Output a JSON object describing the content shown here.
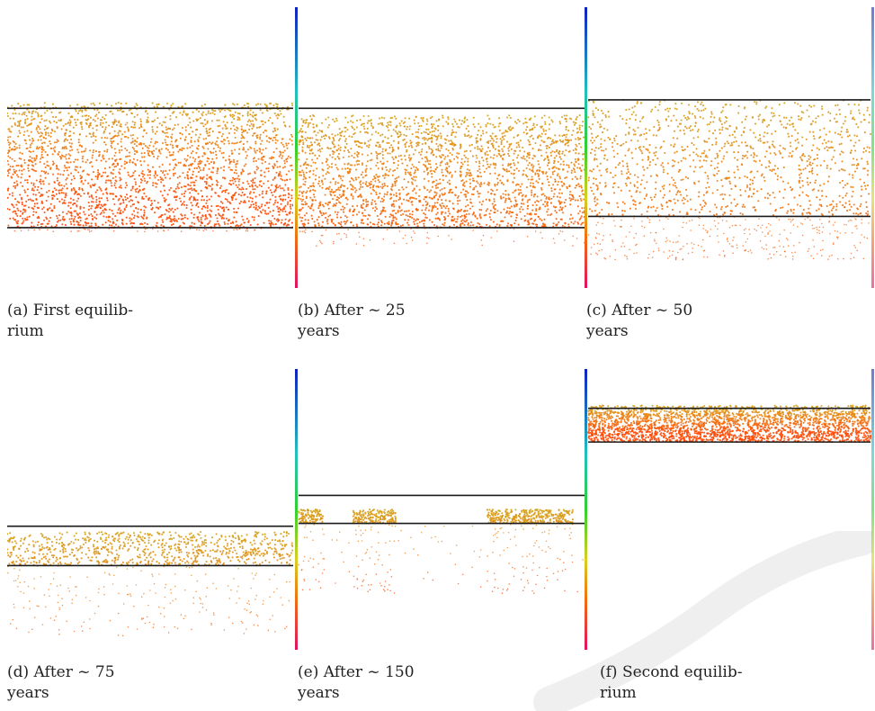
{
  "figure": {
    "panels": [
      {
        "id": "a",
        "caption_line1": "(a)  First  equilib-",
        "caption_line2": "rium",
        "upper_line_level": 0.64,
        "lower_line_level": 0.215,
        "band_top": 0.66,
        "band_bottom": 0.2,
        "density": 1.0,
        "warm_shift": 0.75,
        "colorbar": "none",
        "clusters": []
      },
      {
        "id": "b",
        "caption_line1": "(b)   After   ~   25",
        "caption_line2": "years",
        "upper_line_level": 0.64,
        "lower_line_level": 0.215,
        "band_top": 0.615,
        "band_bottom": 0.15,
        "density": 0.95,
        "warm_shift": 0.35,
        "colorbar": "left",
        "clusters": []
      },
      {
        "id": "c",
        "caption_line1": "(c)   After   ~   50",
        "caption_line2": "years",
        "upper_line_level": 0.67,
        "lower_line_level": 0.255,
        "band_top": 0.67,
        "band_bottom": 0.1,
        "density": 0.55,
        "warm_shift": 0.25,
        "colorbar": "both",
        "clusters": []
      },
      {
        "id": "d",
        "caption_line1": "(d)   After   ~   75",
        "caption_line2": "years",
        "upper_line_level": 0.44,
        "lower_line_level": 0.3,
        "band_top": 0.42,
        "band_bottom": 0.05,
        "density": 0.4,
        "warm_shift": 0.2,
        "colorbar": "none",
        "clusters": []
      },
      {
        "id": "e",
        "caption_line1": "(e)  After  ~  150",
        "caption_line2": "years",
        "upper_line_level": 0.55,
        "lower_line_level": 0.45,
        "band_top": 0.5,
        "band_bottom": 0.2,
        "density": 0.6,
        "warm_shift": 0.45,
        "colorbar": "left",
        "clusters": [
          [
            0.0,
            0.09
          ],
          [
            0.19,
            0.34
          ],
          [
            0.66,
            0.96
          ]
        ]
      },
      {
        "id": "f",
        "caption_line1": "(f) Second equilib-",
        "caption_line2": "rium",
        "upper_line_level": 0.86,
        "lower_line_level": 0.74,
        "band_top": 0.87,
        "band_bottom": 0.74,
        "density": 1.0,
        "warm_shift": 0.75,
        "colorbar": "both",
        "clusters": []
      }
    ],
    "colors": {
      "line": "#1a1a1a",
      "gold": "#d4a21a",
      "orange": "#f07a10",
      "red_orange": "#ff4a05"
    }
  }
}
